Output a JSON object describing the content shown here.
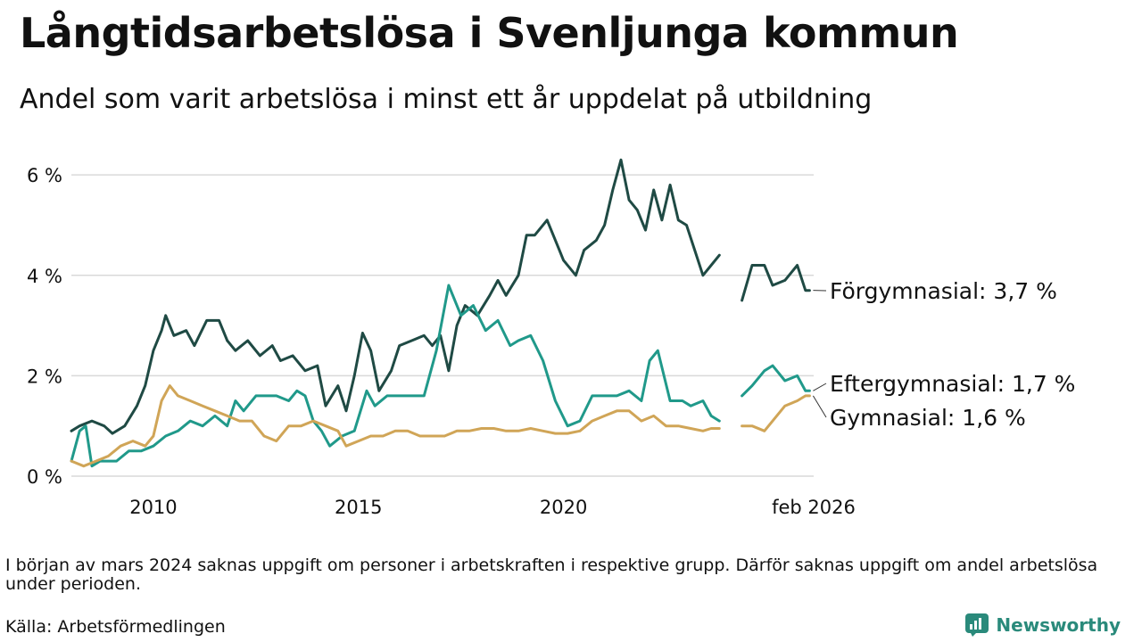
{
  "header": {
    "title": "Långtidsarbetslösa i Svenljunga kommun",
    "subtitle": "Andel som varit arbetslösa i minst ett år uppdelat på utbildning"
  },
  "footer": {
    "note": "I början av mars 2024 saknas uppgift om personer i arbetskraften i respektive grupp. Därför saknas uppgift om andel arbetslösa under perioden.",
    "source": "Källa: Arbetsförmedlingen",
    "brand": "Newsworthy"
  },
  "colors": {
    "forgymnasial": "#1f4a44",
    "eftergymnasial": "#20998a",
    "gymnasial": "#d0a557",
    "grid": "#d9d9d9",
    "brand": "#2a8a7b"
  },
  "chart_data": {
    "type": "line",
    "title": "Långtidsarbetslösa i Svenljunga kommun",
    "x_unit": "year (decimal)",
    "y_unit": "%",
    "xlim": [
      2008.0,
      2026.1
    ],
    "ylim": [
      0,
      6.5
    ],
    "y_ticks": [
      {
        "value": 0,
        "label": "0 %"
      },
      {
        "value": 2,
        "label": "2 %"
      },
      {
        "value": 4,
        "label": "4 %"
      },
      {
        "value": 6,
        "label": "6 %"
      }
    ],
    "x_ticks": [
      {
        "value": 2010,
        "label": "2010"
      },
      {
        "value": 2015,
        "label": "2015"
      },
      {
        "value": 2020,
        "label": "2020"
      },
      {
        "value": 2026.1,
        "label": "feb 2026"
      }
    ],
    "gap": [
      2024.2,
      2024.35
    ],
    "series": [
      {
        "name": "Förgymnasial",
        "label": "Förgymnasial: 3,7 %",
        "color_key": "forgymnasial",
        "points": [
          [
            2008.0,
            0.9
          ],
          [
            2008.2,
            1.0
          ],
          [
            2008.5,
            1.1
          ],
          [
            2008.8,
            1.0
          ],
          [
            2009.0,
            0.85
          ],
          [
            2009.3,
            1.0
          ],
          [
            2009.6,
            1.4
          ],
          [
            2009.8,
            1.8
          ],
          [
            2010.0,
            2.5
          ],
          [
            2010.2,
            2.9
          ],
          [
            2010.3,
            3.2
          ],
          [
            2010.5,
            2.8
          ],
          [
            2010.8,
            2.9
          ],
          [
            2011.0,
            2.6
          ],
          [
            2011.3,
            3.1
          ],
          [
            2011.6,
            3.1
          ],
          [
            2011.8,
            2.7
          ],
          [
            2012.0,
            2.5
          ],
          [
            2012.3,
            2.7
          ],
          [
            2012.6,
            2.4
          ],
          [
            2012.9,
            2.6
          ],
          [
            2013.1,
            2.3
          ],
          [
            2013.4,
            2.4
          ],
          [
            2013.7,
            2.1
          ],
          [
            2014.0,
            2.2
          ],
          [
            2014.2,
            1.4
          ],
          [
            2014.5,
            1.8
          ],
          [
            2014.7,
            1.3
          ],
          [
            2014.9,
            2.0
          ],
          [
            2015.1,
            2.85
          ],
          [
            2015.3,
            2.5
          ],
          [
            2015.5,
            1.7
          ],
          [
            2015.8,
            2.1
          ],
          [
            2016.0,
            2.6
          ],
          [
            2016.3,
            2.7
          ],
          [
            2016.6,
            2.8
          ],
          [
            2016.8,
            2.6
          ],
          [
            2017.0,
            2.8
          ],
          [
            2017.2,
            2.1
          ],
          [
            2017.4,
            3.0
          ],
          [
            2017.6,
            3.4
          ],
          [
            2017.9,
            3.2
          ],
          [
            2018.2,
            3.6
          ],
          [
            2018.4,
            3.9
          ],
          [
            2018.6,
            3.6
          ],
          [
            2018.9,
            4.0
          ],
          [
            2019.1,
            4.8
          ],
          [
            2019.3,
            4.8
          ],
          [
            2019.6,
            5.1
          ],
          [
            2019.9,
            4.5
          ],
          [
            2020.0,
            4.3
          ],
          [
            2020.3,
            4.0
          ],
          [
            2020.5,
            4.5
          ],
          [
            2020.8,
            4.7
          ],
          [
            2021.0,
            5.0
          ],
          [
            2021.2,
            5.7
          ],
          [
            2021.3,
            6.0
          ],
          [
            2021.4,
            6.3
          ],
          [
            2021.6,
            5.5
          ],
          [
            2021.8,
            5.3
          ],
          [
            2022.0,
            4.9
          ],
          [
            2022.2,
            5.7
          ],
          [
            2022.4,
            5.1
          ],
          [
            2022.6,
            5.8
          ],
          [
            2022.8,
            5.1
          ],
          [
            2023.0,
            5.0
          ],
          [
            2023.2,
            4.5
          ],
          [
            2023.4,
            4.0
          ],
          [
            2023.6,
            4.2
          ],
          [
            2023.8,
            4.4
          ],
          [
            2024.35,
            3.5
          ],
          [
            2024.6,
            4.2
          ],
          [
            2024.9,
            4.2
          ],
          [
            2025.1,
            3.8
          ],
          [
            2025.4,
            3.9
          ],
          [
            2025.7,
            4.2
          ],
          [
            2025.9,
            3.7
          ],
          [
            2026.0,
            3.7
          ]
        ]
      },
      {
        "name": "Eftergymnasial",
        "label": "Eftergymnasial: 1,7 %",
        "color_key": "eftergymnasial",
        "points": [
          [
            2008.0,
            0.3
          ],
          [
            2008.2,
            0.9
          ],
          [
            2008.35,
            1.0
          ],
          [
            2008.5,
            0.2
          ],
          [
            2008.7,
            0.3
          ],
          [
            2008.9,
            0.3
          ],
          [
            2009.1,
            0.3
          ],
          [
            2009.4,
            0.5
          ],
          [
            2009.7,
            0.5
          ],
          [
            2010.0,
            0.6
          ],
          [
            2010.3,
            0.8
          ],
          [
            2010.6,
            0.9
          ],
          [
            2010.9,
            1.1
          ],
          [
            2011.2,
            1.0
          ],
          [
            2011.5,
            1.2
          ],
          [
            2011.8,
            1.0
          ],
          [
            2012.0,
            1.5
          ],
          [
            2012.2,
            1.3
          ],
          [
            2012.5,
            1.6
          ],
          [
            2012.8,
            1.6
          ],
          [
            2013.0,
            1.6
          ],
          [
            2013.3,
            1.5
          ],
          [
            2013.5,
            1.7
          ],
          [
            2013.7,
            1.6
          ],
          [
            2013.9,
            1.1
          ],
          [
            2014.1,
            0.9
          ],
          [
            2014.3,
            0.6
          ],
          [
            2014.6,
            0.8
          ],
          [
            2014.9,
            0.9
          ],
          [
            2015.2,
            1.7
          ],
          [
            2015.4,
            1.4
          ],
          [
            2015.7,
            1.6
          ],
          [
            2016.0,
            1.6
          ],
          [
            2016.3,
            1.6
          ],
          [
            2016.6,
            1.6
          ],
          [
            2016.9,
            2.5
          ],
          [
            2017.2,
            3.8
          ],
          [
            2017.5,
            3.2
          ],
          [
            2017.8,
            3.4
          ],
          [
            2018.1,
            2.9
          ],
          [
            2018.4,
            3.1
          ],
          [
            2018.7,
            2.6
          ],
          [
            2018.9,
            2.7
          ],
          [
            2019.2,
            2.8
          ],
          [
            2019.5,
            2.3
          ],
          [
            2019.8,
            1.5
          ],
          [
            2020.1,
            1.0
          ],
          [
            2020.4,
            1.1
          ],
          [
            2020.7,
            1.6
          ],
          [
            2021.0,
            1.6
          ],
          [
            2021.3,
            1.6
          ],
          [
            2021.6,
            1.7
          ],
          [
            2021.9,
            1.5
          ],
          [
            2022.1,
            2.3
          ],
          [
            2022.3,
            2.5
          ],
          [
            2022.6,
            1.5
          ],
          [
            2022.9,
            1.5
          ],
          [
            2023.1,
            1.4
          ],
          [
            2023.4,
            1.5
          ],
          [
            2023.6,
            1.2
          ],
          [
            2023.8,
            1.1
          ],
          [
            2024.35,
            1.6
          ],
          [
            2024.6,
            1.8
          ],
          [
            2024.9,
            2.1
          ],
          [
            2025.1,
            2.2
          ],
          [
            2025.4,
            1.9
          ],
          [
            2025.7,
            2.0
          ],
          [
            2025.9,
            1.7
          ],
          [
            2026.0,
            1.7
          ]
        ]
      },
      {
        "name": "Gymnasial",
        "label": "Gymnasial: 1,6 %",
        "color_key": "gymnasial",
        "points": [
          [
            2008.0,
            0.3
          ],
          [
            2008.3,
            0.2
          ],
          [
            2008.6,
            0.3
          ],
          [
            2008.9,
            0.4
          ],
          [
            2009.2,
            0.6
          ],
          [
            2009.5,
            0.7
          ],
          [
            2009.8,
            0.6
          ],
          [
            2010.0,
            0.8
          ],
          [
            2010.2,
            1.5
          ],
          [
            2010.4,
            1.8
          ],
          [
            2010.6,
            1.6
          ],
          [
            2010.9,
            1.5
          ],
          [
            2011.2,
            1.4
          ],
          [
            2011.5,
            1.3
          ],
          [
            2011.8,
            1.2
          ],
          [
            2012.1,
            1.1
          ],
          [
            2012.4,
            1.1
          ],
          [
            2012.7,
            0.8
          ],
          [
            2013.0,
            0.7
          ],
          [
            2013.3,
            1.0
          ],
          [
            2013.6,
            1.0
          ],
          [
            2013.9,
            1.1
          ],
          [
            2014.2,
            1.0
          ],
          [
            2014.5,
            0.9
          ],
          [
            2014.7,
            0.6
          ],
          [
            2015.0,
            0.7
          ],
          [
            2015.3,
            0.8
          ],
          [
            2015.6,
            0.8
          ],
          [
            2015.9,
            0.9
          ],
          [
            2016.2,
            0.9
          ],
          [
            2016.5,
            0.8
          ],
          [
            2016.8,
            0.8
          ],
          [
            2017.1,
            0.8
          ],
          [
            2017.4,
            0.9
          ],
          [
            2017.7,
            0.9
          ],
          [
            2018.0,
            0.95
          ],
          [
            2018.3,
            0.95
          ],
          [
            2018.6,
            0.9
          ],
          [
            2018.9,
            0.9
          ],
          [
            2019.2,
            0.95
          ],
          [
            2019.5,
            0.9
          ],
          [
            2019.8,
            0.85
          ],
          [
            2020.1,
            0.85
          ],
          [
            2020.4,
            0.9
          ],
          [
            2020.7,
            1.1
          ],
          [
            2021.0,
            1.2
          ],
          [
            2021.3,
            1.3
          ],
          [
            2021.6,
            1.3
          ],
          [
            2021.9,
            1.1
          ],
          [
            2022.2,
            1.2
          ],
          [
            2022.5,
            1.0
          ],
          [
            2022.8,
            1.0
          ],
          [
            2023.1,
            0.95
          ],
          [
            2023.4,
            0.9
          ],
          [
            2023.6,
            0.95
          ],
          [
            2023.8,
            0.95
          ],
          [
            2024.35,
            1.0
          ],
          [
            2024.6,
            1.0
          ],
          [
            2024.9,
            0.9
          ],
          [
            2025.1,
            1.1
          ],
          [
            2025.4,
            1.4
          ],
          [
            2025.7,
            1.5
          ],
          [
            2025.9,
            1.6
          ],
          [
            2026.0,
            1.6
          ]
        ]
      }
    ]
  }
}
